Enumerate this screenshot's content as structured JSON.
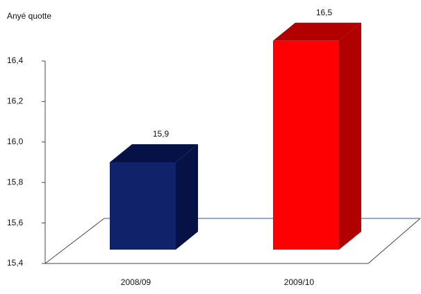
{
  "chart_data": {
    "type": "bar3d",
    "title": "Anyé quotte",
    "categories": [
      "2008/09",
      "2009/10"
    ],
    "values": [
      15.9,
      16.5
    ],
    "value_labels": [
      "15,9",
      "16,5"
    ],
    "colors": [
      "#10226a",
      "#ff0000"
    ],
    "ylim": [
      15.4,
      16.4
    ],
    "yticks": [
      {
        "value": 15.4,
        "label": "15,4"
      },
      {
        "value": 15.6,
        "label": "15,6"
      },
      {
        "value": 15.8,
        "label": "15,8"
      },
      {
        "value": 16.0,
        "label": "16,0"
      },
      {
        "value": 16.2,
        "label": "16,2"
      },
      {
        "value": 16.4,
        "label": "16,4"
      }
    ]
  }
}
